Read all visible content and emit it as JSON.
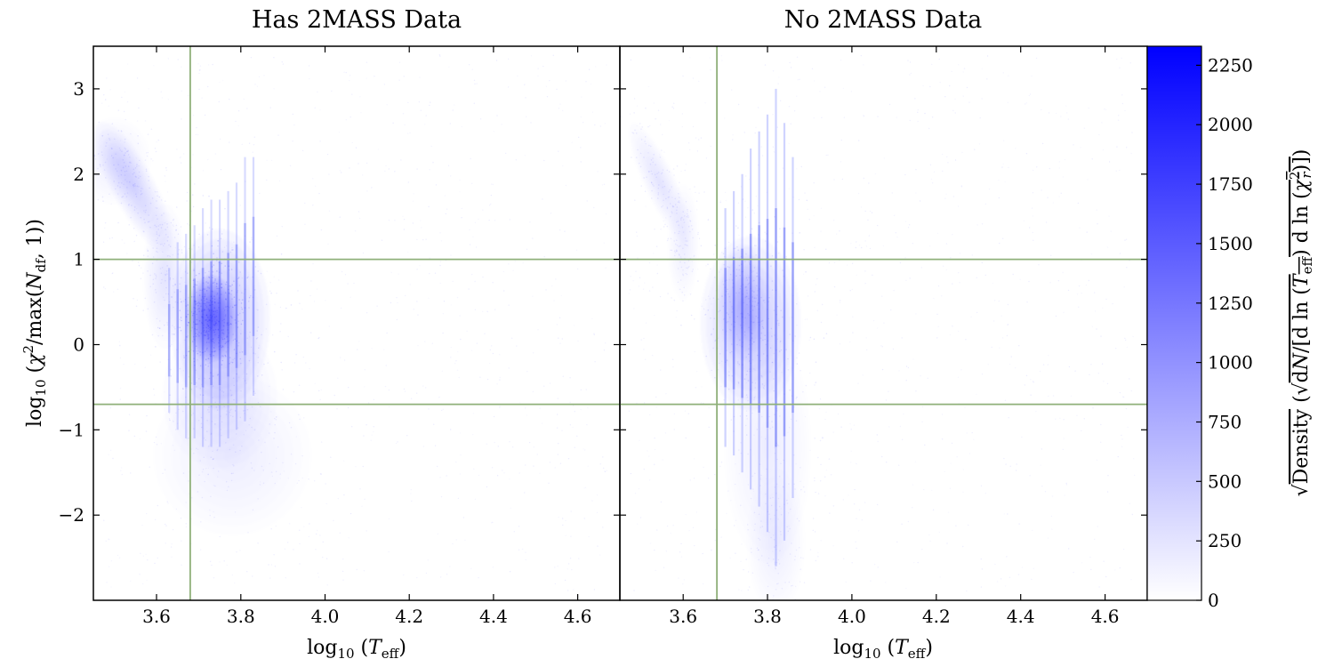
{
  "chart_data": [
    {
      "type": "heatmap",
      "title": "Has 2MASS Data",
      "xlabel": "log10 (Teff)",
      "ylabel": "log10 (χ²/max(Ndf, 1))",
      "xlim": [
        3.45,
        4.7
      ],
      "ylim": [
        -3.0,
        3.5
      ],
      "xticks": [
        3.6,
        3.8,
        4.0,
        4.2,
        4.4,
        4.6
      ],
      "xtick_labels": [
        "3.6",
        "3.8",
        "4.0",
        "4.2",
        "4.4",
        "4.6"
      ],
      "yticks": [
        3,
        2,
        1,
        0,
        -1,
        -2
      ],
      "ytick_labels": [
        "3",
        "2",
        "1",
        "0",
        "−1",
        "−2"
      ],
      "reference_lines": {
        "x": [
          3.68
        ],
        "y": [
          1.0,
          -0.7
        ],
        "color": "#8fb07a"
      },
      "density_regions": [
        {
          "x": 3.73,
          "y": 0.3,
          "sx": 0.035,
          "sy": 0.3,
          "rot": 0,
          "weight": 0.85
        },
        {
          "x": 3.75,
          "y": 0.3,
          "sx": 0.07,
          "sy": 0.62,
          "rot": 0,
          "weight": 0.38
        },
        {
          "x": 3.75,
          "y": -0.6,
          "sx": 0.08,
          "sy": 0.5,
          "rot": 0,
          "weight": 0.14
        },
        {
          "x": 3.78,
          "y": -1.3,
          "sx": 0.11,
          "sy": 0.55,
          "rot": 0,
          "weight": 0.07
        },
        {
          "x": 3.545,
          "y": 1.85,
          "sx": 0.03,
          "sy": 0.5,
          "rot": -28,
          "weight": 0.22
        },
        {
          "x": 3.5,
          "y": 2.15,
          "sx": 0.05,
          "sy": 0.3,
          "rot": 0,
          "weight": 0.1
        },
        {
          "x": 3.62,
          "y": 0.8,
          "sx": 0.03,
          "sy": 0.5,
          "rot": 0,
          "weight": 0.14
        }
      ],
      "stripes": {
        "x": [
          3.63,
          3.65,
          3.67,
          3.69,
          3.71,
          3.73,
          3.75,
          3.77,
          3.79,
          3.81,
          3.83
        ],
        "y_top": [
          0.9,
          1.2,
          1.3,
          1.4,
          1.6,
          1.7,
          1.7,
          1.8,
          1.9,
          2.2,
          2.2
        ],
        "y_bottom": [
          -0.8,
          -1.0,
          -1.1,
          -1.1,
          -1.2,
          -1.2,
          -1.2,
          -1.1,
          -1.0,
          -0.9,
          -0.6
        ],
        "weight": 0.35
      }
    },
    {
      "type": "heatmap",
      "title": "No 2MASS Data",
      "xlabel": "log10 (Teff)",
      "ylabel": "",
      "xlim": [
        3.45,
        4.7
      ],
      "ylim": [
        -3.0,
        3.5
      ],
      "xticks": [
        3.6,
        3.8,
        4.0,
        4.2,
        4.4,
        4.6
      ],
      "xtick_labels": [
        "3.6",
        "3.8",
        "4.0",
        "4.2",
        "4.4",
        "4.6"
      ],
      "yticks": [
        3,
        2,
        1,
        0,
        -1,
        -2
      ],
      "reference_lines": {
        "x": [
          3.68
        ],
        "y": [
          1.0,
          -0.7
        ],
        "color": "#8fb07a"
      },
      "density_regions": [
        {
          "x": 3.76,
          "y": 0.25,
          "sx": 0.07,
          "sy": 0.6,
          "rot": 0,
          "weight": 0.33
        },
        {
          "x": 3.74,
          "y": 0.5,
          "sx": 0.035,
          "sy": 0.4,
          "rot": 0,
          "weight": 0.25
        },
        {
          "x": 3.8,
          "y": -1.2,
          "sx": 0.06,
          "sy": 0.8,
          "rot": 0,
          "weight": 0.11
        },
        {
          "x": 3.82,
          "y": -2.3,
          "sx": 0.04,
          "sy": 0.5,
          "rot": 0,
          "weight": 0.07
        },
        {
          "x": 3.545,
          "y": 1.9,
          "sx": 0.022,
          "sy": 0.45,
          "rot": -25,
          "weight": 0.13
        },
        {
          "x": 3.6,
          "y": 1.2,
          "sx": 0.022,
          "sy": 0.4,
          "rot": 0,
          "weight": 0.1
        }
      ],
      "stripes": {
        "x": [
          3.7,
          3.72,
          3.74,
          3.76,
          3.78,
          3.8,
          3.82,
          3.84,
          3.86
        ],
        "y_top": [
          1.6,
          1.8,
          2.0,
          2.3,
          2.5,
          2.7,
          3.0,
          2.6,
          2.2
        ],
        "y_bottom": [
          -1.2,
          -1.3,
          -1.5,
          -1.7,
          -1.9,
          -2.2,
          -2.6,
          -2.3,
          -1.8
        ],
        "weight": 0.42
      }
    }
  ],
  "colorbar": {
    "label": "√Density (√dN/[d ln (Teff) d ln (χr²)])",
    "min": 0,
    "max": 2330,
    "ticks": [
      0,
      250,
      500,
      750,
      1000,
      1250,
      1500,
      1750,
      2000,
      2250
    ],
    "color_low": "#ffffff",
    "color_high": "#0000ff"
  }
}
